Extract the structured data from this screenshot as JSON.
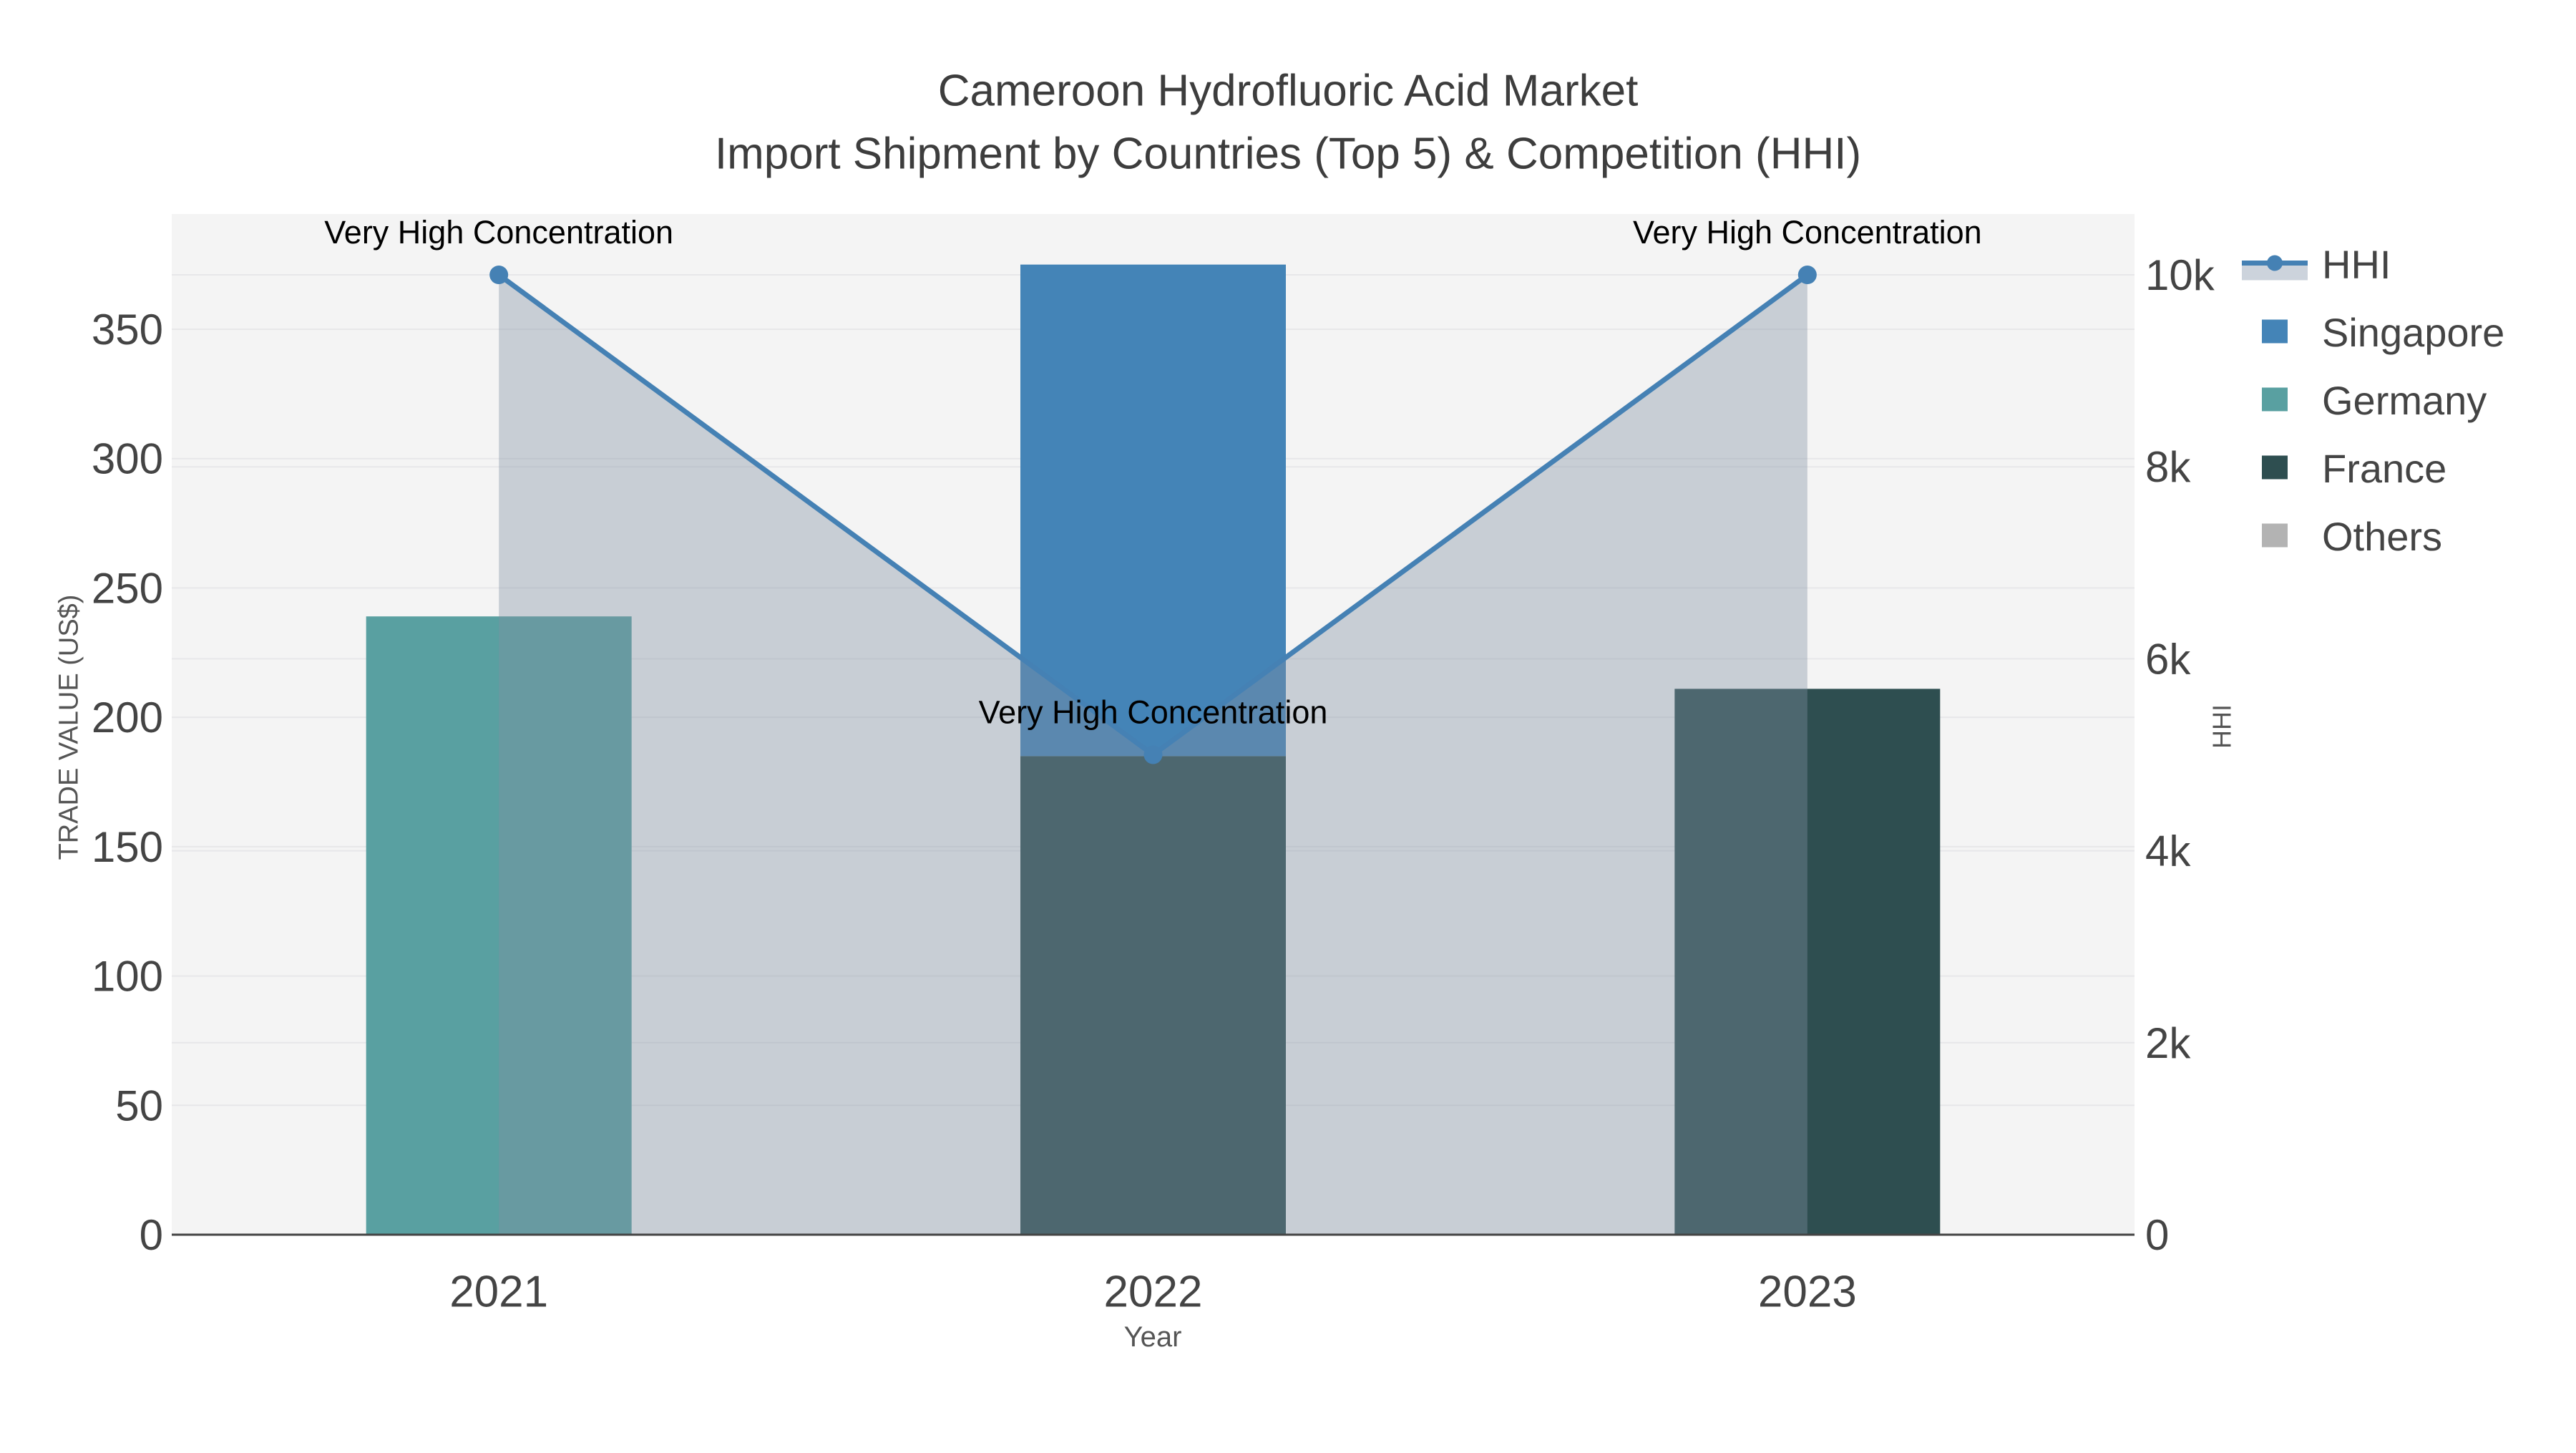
{
  "title": {
    "line1": "Cameroon Hydrofluoric Acid Market",
    "line2": "Import Shipment by Countries (Top 5) & Competition (HHI)"
  },
  "axes": {
    "x": {
      "title": "Year",
      "categories": [
        "2021",
        "2022",
        "2023"
      ]
    },
    "y_left": {
      "title": "TRADE VALUE (US$)",
      "tick_values": [
        0,
        50,
        100,
        150,
        200,
        250,
        300,
        350
      ],
      "tick_labels": [
        "0",
        "50",
        "100",
        "150",
        "200",
        "250",
        "300",
        "350"
      ],
      "range": [
        0,
        394.5
      ]
    },
    "y_right": {
      "title": "HHI",
      "tick_values": [
        0,
        2000,
        4000,
        6000,
        8000,
        10000
      ],
      "tick_labels": [
        "0",
        "2k",
        "4k",
        "6k",
        "8k",
        "10k"
      ],
      "range": [
        0,
        10634
      ]
    }
  },
  "legend": [
    {
      "label": "HHI",
      "type": "line",
      "color": "#4581b4",
      "band_color": "#ccd3dc"
    },
    {
      "label": "Singapore",
      "type": "square",
      "color": "#4484b7"
    },
    {
      "label": "Germany",
      "type": "square",
      "color": "#59a0a1"
    },
    {
      "label": "France",
      "type": "square",
      "color": "#2e4e50"
    },
    {
      "label": "Others",
      "type": "square",
      "color": "#b3b3b3"
    }
  ],
  "chart_data": {
    "type": "combo",
    "subtype": "stacked-bar-plus-line",
    "categories": [
      "2021",
      "2022",
      "2023"
    ],
    "bar_series": [
      {
        "name": "Singapore",
        "color": "#4484b7",
        "values": [
          0,
          190,
          0
        ]
      },
      {
        "name": "Germany",
        "color": "#59a0a1",
        "values": [
          239,
          0,
          0
        ]
      },
      {
        "name": "France",
        "color": "#2e4e50",
        "values": [
          0,
          185,
          211
        ]
      },
      {
        "name": "Others",
        "color": "#b3b3b3",
        "values": [
          0,
          0,
          0
        ]
      }
    ],
    "stack_order": [
      "France",
      "Germany",
      "Singapore",
      "Others"
    ],
    "line_series": {
      "name": "HHI",
      "color": "#4581b4",
      "fill_mode": "tozeroy",
      "fill_color_rgba": "rgba(128,144,162,0.38)",
      "values": [
        10000,
        5000,
        10000
      ]
    },
    "annotations": [
      {
        "text": "Very High Concentration",
        "category": "2021",
        "hhi": 10000
      },
      {
        "text": "Very High Concentration",
        "category": "2022",
        "hhi": 5000
      },
      {
        "text": "Very High Concentration",
        "category": "2023",
        "hhi": 10000
      }
    ],
    "ylabel_left": "TRADE VALUE (US$)",
    "ylabel_right": "HHI",
    "xlabel": "Year",
    "grid": true,
    "legend_position": "right",
    "plot_bg": "#f4f4f4",
    "grid_color": "#e7e7e9",
    "axis_line_color": "#444444"
  }
}
